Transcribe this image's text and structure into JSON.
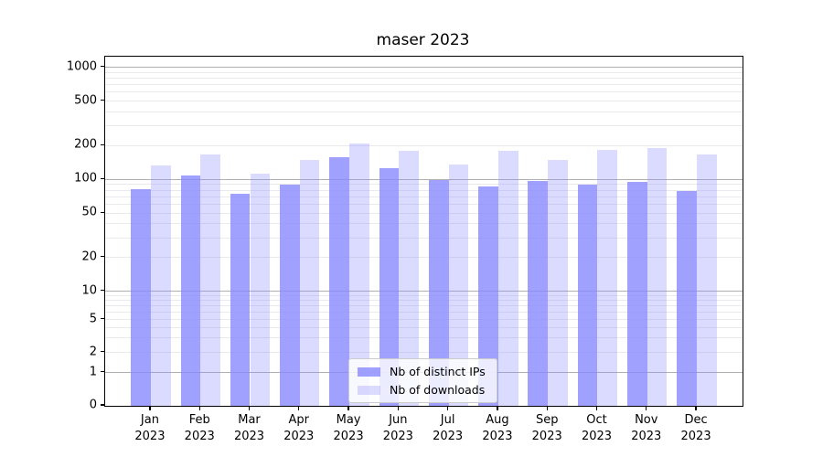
{
  "chart_data": {
    "type": "bar",
    "title": "maser 2023",
    "categories": [
      "Jan",
      "Feb",
      "Mar",
      "Apr",
      "May",
      "Jun",
      "Jul",
      "Aug",
      "Sep",
      "Oct",
      "Nov",
      "Dec"
    ],
    "x_tick_second_line": "2023",
    "series": [
      {
        "name": "Nb of distinct IPs",
        "color": "rgba(136,136,255,0.8)",
        "values": [
          82,
          108,
          74,
          89,
          158,
          126,
          99,
          87,
          97,
          89,
          95,
          79
        ]
      },
      {
        "name": "Nb of downloads",
        "color": "rgba(136,136,255,0.3)",
        "values": [
          134,
          168,
          113,
          148,
          211,
          179,
          136,
          179,
          150,
          182,
          191,
          168
        ]
      }
    ],
    "y_scale": "symlog",
    "ylim": [
      0,
      1000
    ],
    "y_ticks": [
      0,
      1,
      2,
      5,
      10,
      20,
      50,
      100,
      200,
      500,
      1000
    ],
    "grid": {
      "major_ticks": [
        1,
        10,
        100,
        1000
      ],
      "major_color": "#b0b0b0",
      "minor_color": "#e9e9ee"
    },
    "legend_position": "lower center"
  }
}
